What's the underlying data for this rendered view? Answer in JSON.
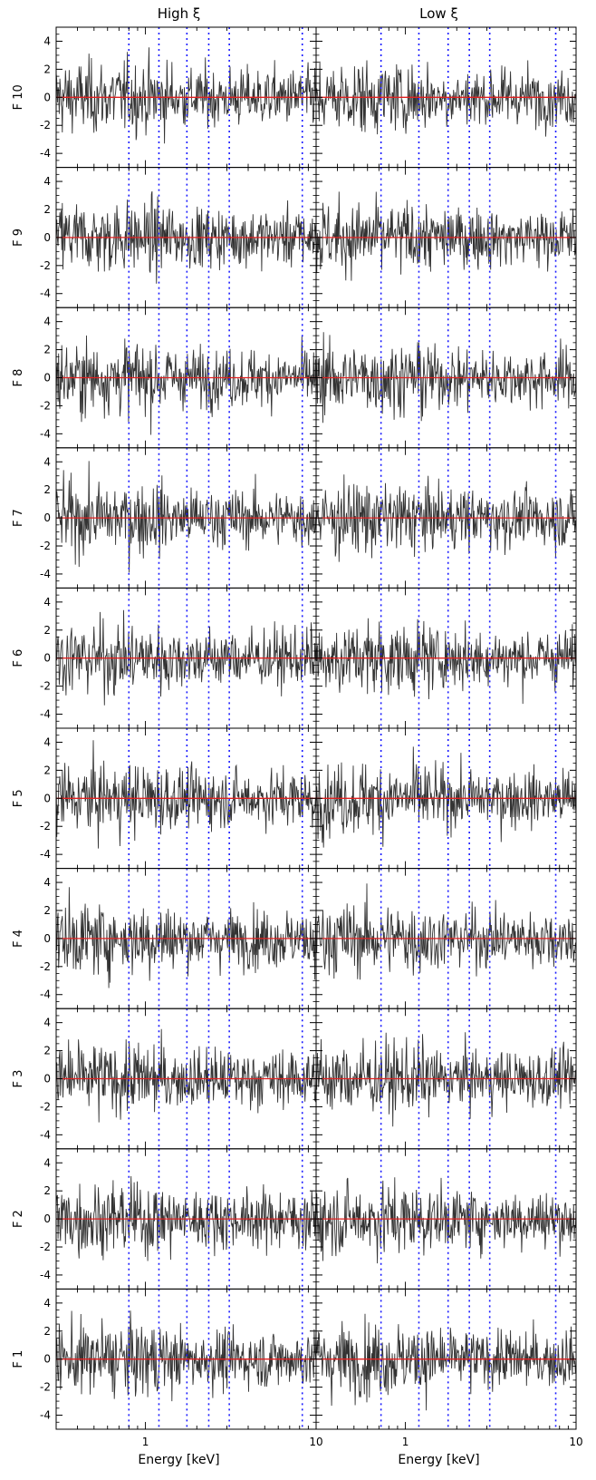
{
  "chart_data": {
    "type": "line",
    "layout": "grid 10 rows x 2 columns, shared axes",
    "columns": [
      {
        "title": "High ξ",
        "xlabel": "Energy [keV]",
        "vlines_keV": [
          0.8,
          1.2,
          1.75,
          2.35,
          3.1,
          8.3
        ]
      },
      {
        "title": "Low ξ",
        "xlabel": "Energy [keV]",
        "vlines_keV": [
          0.72,
          1.2,
          1.78,
          2.37,
          3.12,
          7.6
        ]
      }
    ],
    "rows": [
      "F 10",
      "F 9",
      "F 8",
      "F 7",
      "F 6",
      "F 5",
      "F 4",
      "F 3",
      "F 2",
      "F 1"
    ],
    "x_scale": "log",
    "xlim_keV": [
      0.3,
      10
    ],
    "x_tick_labels": [
      "1",
      "10"
    ],
    "ylim": [
      -5,
      5
    ],
    "y_ticks": [
      -4,
      -2,
      0,
      2,
      4
    ],
    "y_tick_labels": [
      "-4",
      "-2",
      "0",
      "2",
      "4"
    ],
    "zero_line": {
      "y": 0,
      "color": "#e02020"
    },
    "residual_color": "#333333",
    "vline_color": "#1a1aff",
    "vline_style": "dotted",
    "residual_amplitude_sigma": 1.3,
    "grid": false,
    "legend": "none"
  }
}
